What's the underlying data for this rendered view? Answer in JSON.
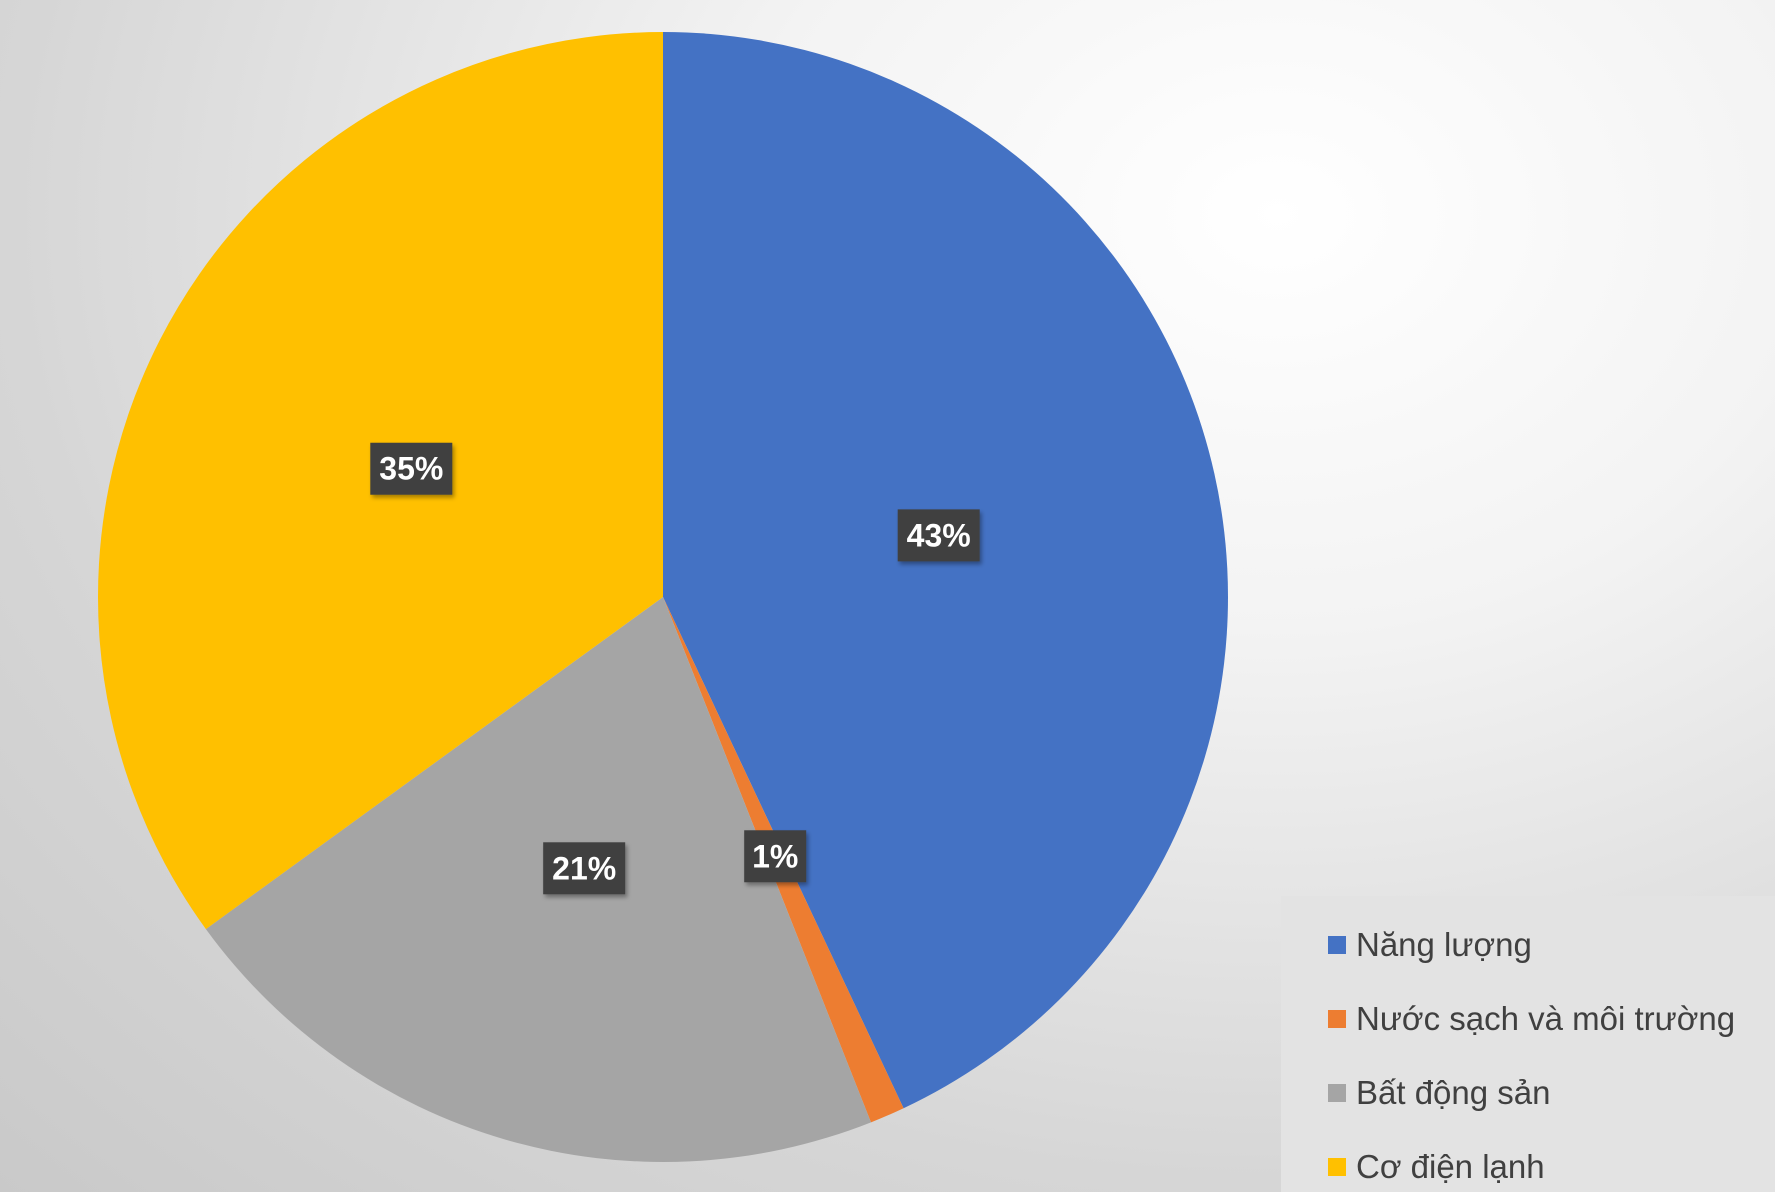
{
  "chart_data": {
    "type": "pie",
    "categories": [
      "Năng lượng",
      "Nước sạch và môi trường",
      "Bất động sản",
      "Cơ điện lạnh"
    ],
    "values": [
      43,
      1,
      21,
      35
    ],
    "labels": [
      "43%",
      "1%",
      "21%",
      "35%"
    ],
    "colors": [
      "#4472C4",
      "#ED7D31",
      "#A5A5A5",
      "#FFC000"
    ],
    "title": "",
    "legend_position": "bottom-right"
  },
  "legend": {
    "items": [
      {
        "label": "Năng lượng",
        "color": "#4472C4"
      },
      {
        "label": "Nước sạch và môi trường",
        "color": "#ED7D31"
      },
      {
        "label": "Bất động sản",
        "color": "#A5A5A5"
      },
      {
        "label": "Cơ điện lạnh",
        "color": "#FFC000"
      }
    ]
  }
}
